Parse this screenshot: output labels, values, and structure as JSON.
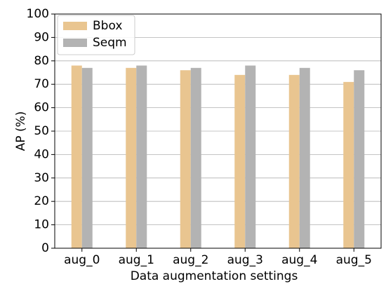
{
  "chart_data": {
    "type": "bar",
    "x_label": "Data augmentation settings",
    "y_label": "AP (%)",
    "categories": [
      "aug_0",
      "aug_1",
      "aug_2",
      "aug_3",
      "aug_4",
      "aug_5"
    ],
    "series": [
      {
        "name": "Bbox",
        "color": "#e9c590",
        "values": [
          78,
          77,
          76,
          74,
          74,
          71
        ]
      },
      {
        "name": "Seqm",
        "color": "#b3b3b3",
        "values": [
          77,
          78,
          77,
          78,
          77,
          76
        ]
      }
    ],
    "ylim": [
      0,
      100
    ],
    "yticks": [
      0,
      10,
      20,
      30,
      40,
      50,
      60,
      70,
      80,
      90,
      100
    ],
    "grid": true,
    "legend": "upper left"
  }
}
